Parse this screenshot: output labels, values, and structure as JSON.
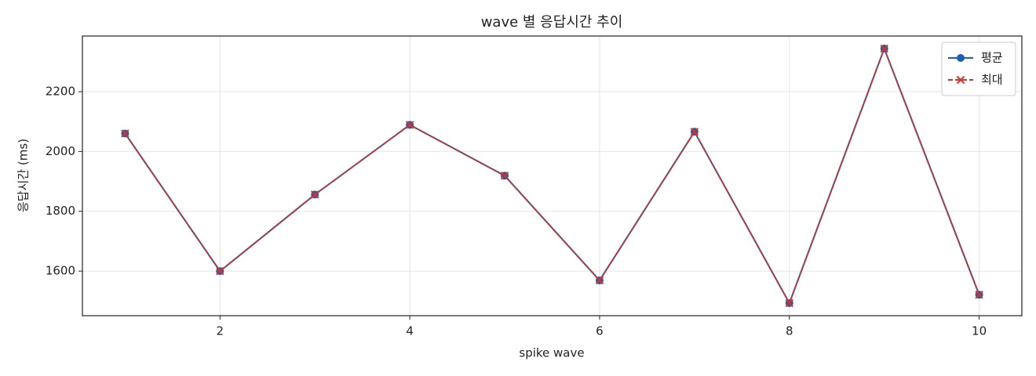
{
  "chart_data": {
    "type": "line",
    "title": "wave 별 응답시간 추이",
    "x_label": "spike wave",
    "y_label": "응답시간 (ms)",
    "x": [
      1,
      2,
      3,
      4,
      5,
      6,
      7,
      8,
      9,
      10
    ],
    "series": [
      {
        "name": "평균",
        "color": "#1f5fb0",
        "marker": "circle",
        "dashed": false,
        "values": [
          2060,
          1600,
          1856,
          2089,
          1919,
          1569,
          2066,
          1493,
          2344,
          1521
        ]
      },
      {
        "name": "최대",
        "color": "#d0342c",
        "marker": "x",
        "dashed": true,
        "values": [
          2060,
          1600,
          1856,
          2089,
          1919,
          1569,
          2066,
          1493,
          2344,
          1521
        ]
      }
    ],
    "xlim": [
      0.55,
      10.45
    ],
    "xticks": [
      2,
      4,
      6,
      8,
      10
    ],
    "ylim": [
      1451,
      2386
    ],
    "yticks": [
      1600,
      1800,
      2000,
      2200
    ],
    "grid": true,
    "legend": "upper right"
  }
}
